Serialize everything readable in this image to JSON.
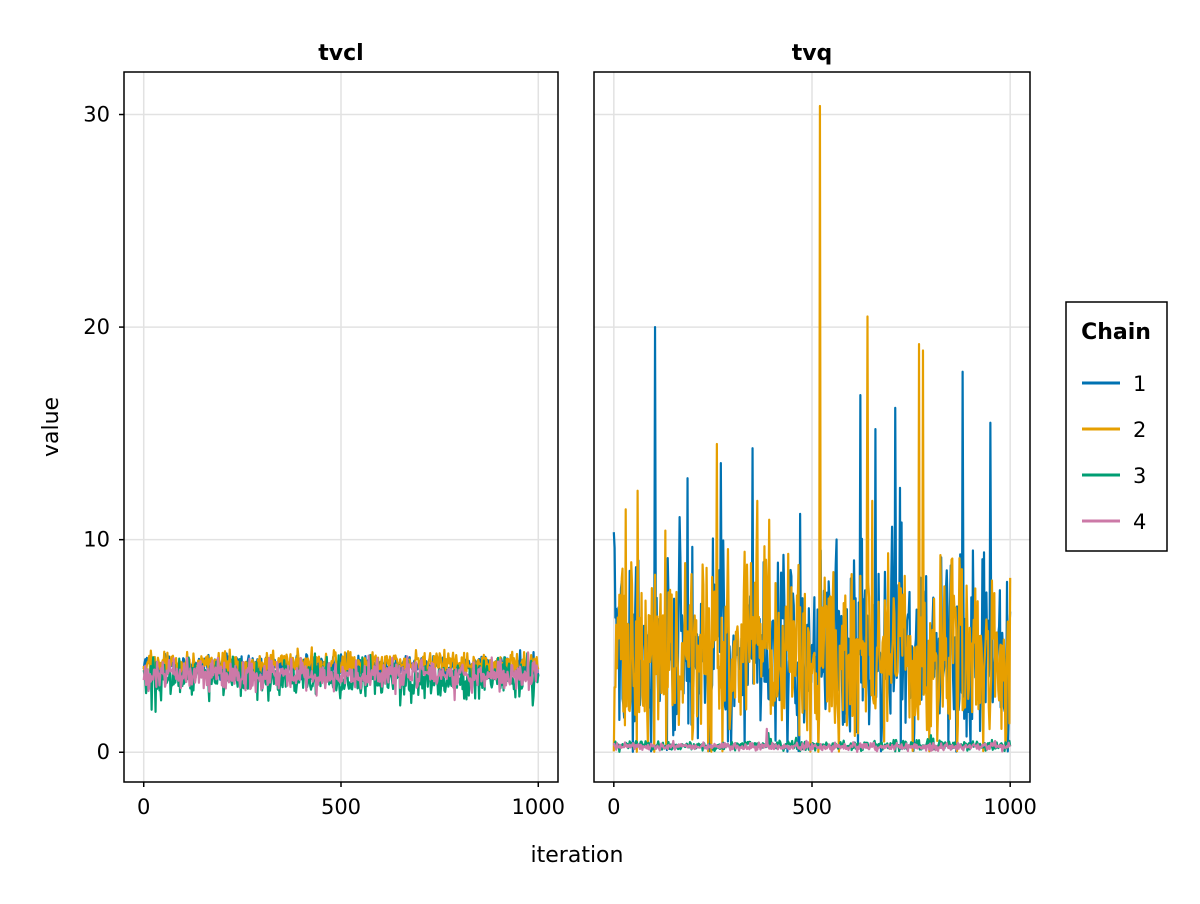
{
  "chart_data": {
    "type": "line",
    "xlabel": "iteration",
    "ylabel": "value",
    "x_ticks": [
      0,
      500,
      1000
    ],
    "y_ticks": [
      0,
      10,
      20,
      30
    ],
    "xlim": [
      -50,
      1050
    ],
    "ylim": [
      -1.4,
      32
    ],
    "grid": true,
    "legend": {
      "title": "Chain",
      "placement": "right",
      "entries": [
        {
          "name": "1",
          "color": "#0072b2"
        },
        {
          "name": "2",
          "color": "#e69f00"
        },
        {
          "name": "3",
          "color": "#009e73"
        },
        {
          "name": "4",
          "color": "#cc79a7"
        }
      ]
    },
    "panels": [
      {
        "title": "tvcl",
        "show_y_ticks": true,
        "series": [
          {
            "name": "1",
            "mean": 4.05,
            "spread": 0.28,
            "spikes": []
          },
          {
            "name": "2",
            "mean": 4.15,
            "spread": 0.28,
            "spikes": []
          },
          {
            "name": "3",
            "mean": 3.5,
            "spread": 0.42,
            "spikes": [
              [
                20,
                2.0
              ],
              [
                30,
                1.9
              ],
              [
                650,
                2.2
              ],
              [
                985,
                2.2
              ]
            ]
          },
          {
            "name": "4",
            "mean": 3.65,
            "spread": 0.35,
            "spikes": []
          }
        ]
      },
      {
        "title": "tvq",
        "show_y_ticks": false,
        "series": [
          {
            "name": "1",
            "mean": 4.6,
            "spread": 2.2,
            "spikes": [
              [
                103,
                20.0
              ],
              [
                270,
                13.6
              ],
              [
                350,
                14.3
              ],
              [
                622,
                16.8
              ],
              [
                660,
                15.2
              ],
              [
                710,
                16.2
              ],
              [
                880,
                17.9
              ],
              [
                950,
                15.5
              ]
            ]
          },
          {
            "name": "2",
            "mean": 4.6,
            "spread": 2.3,
            "spikes": [
              [
                520,
                30.4
              ],
              [
                640,
                20.5
              ],
              [
                770,
                19.2
              ],
              [
                780,
                18.9
              ],
              [
                260,
                14.5
              ],
              [
                60,
                12.3
              ],
              [
                1000,
                8.2
              ]
            ]
          },
          {
            "name": "3",
            "mean": 0.32,
            "spread": 0.12,
            "spikes": [
              [
                390,
                0.9
              ],
              [
                800,
                0.8
              ]
            ]
          },
          {
            "name": "4",
            "mean": 0.27,
            "spread": 0.09,
            "spikes": [
              [
                385,
                1.1
              ]
            ]
          }
        ]
      }
    ]
  }
}
